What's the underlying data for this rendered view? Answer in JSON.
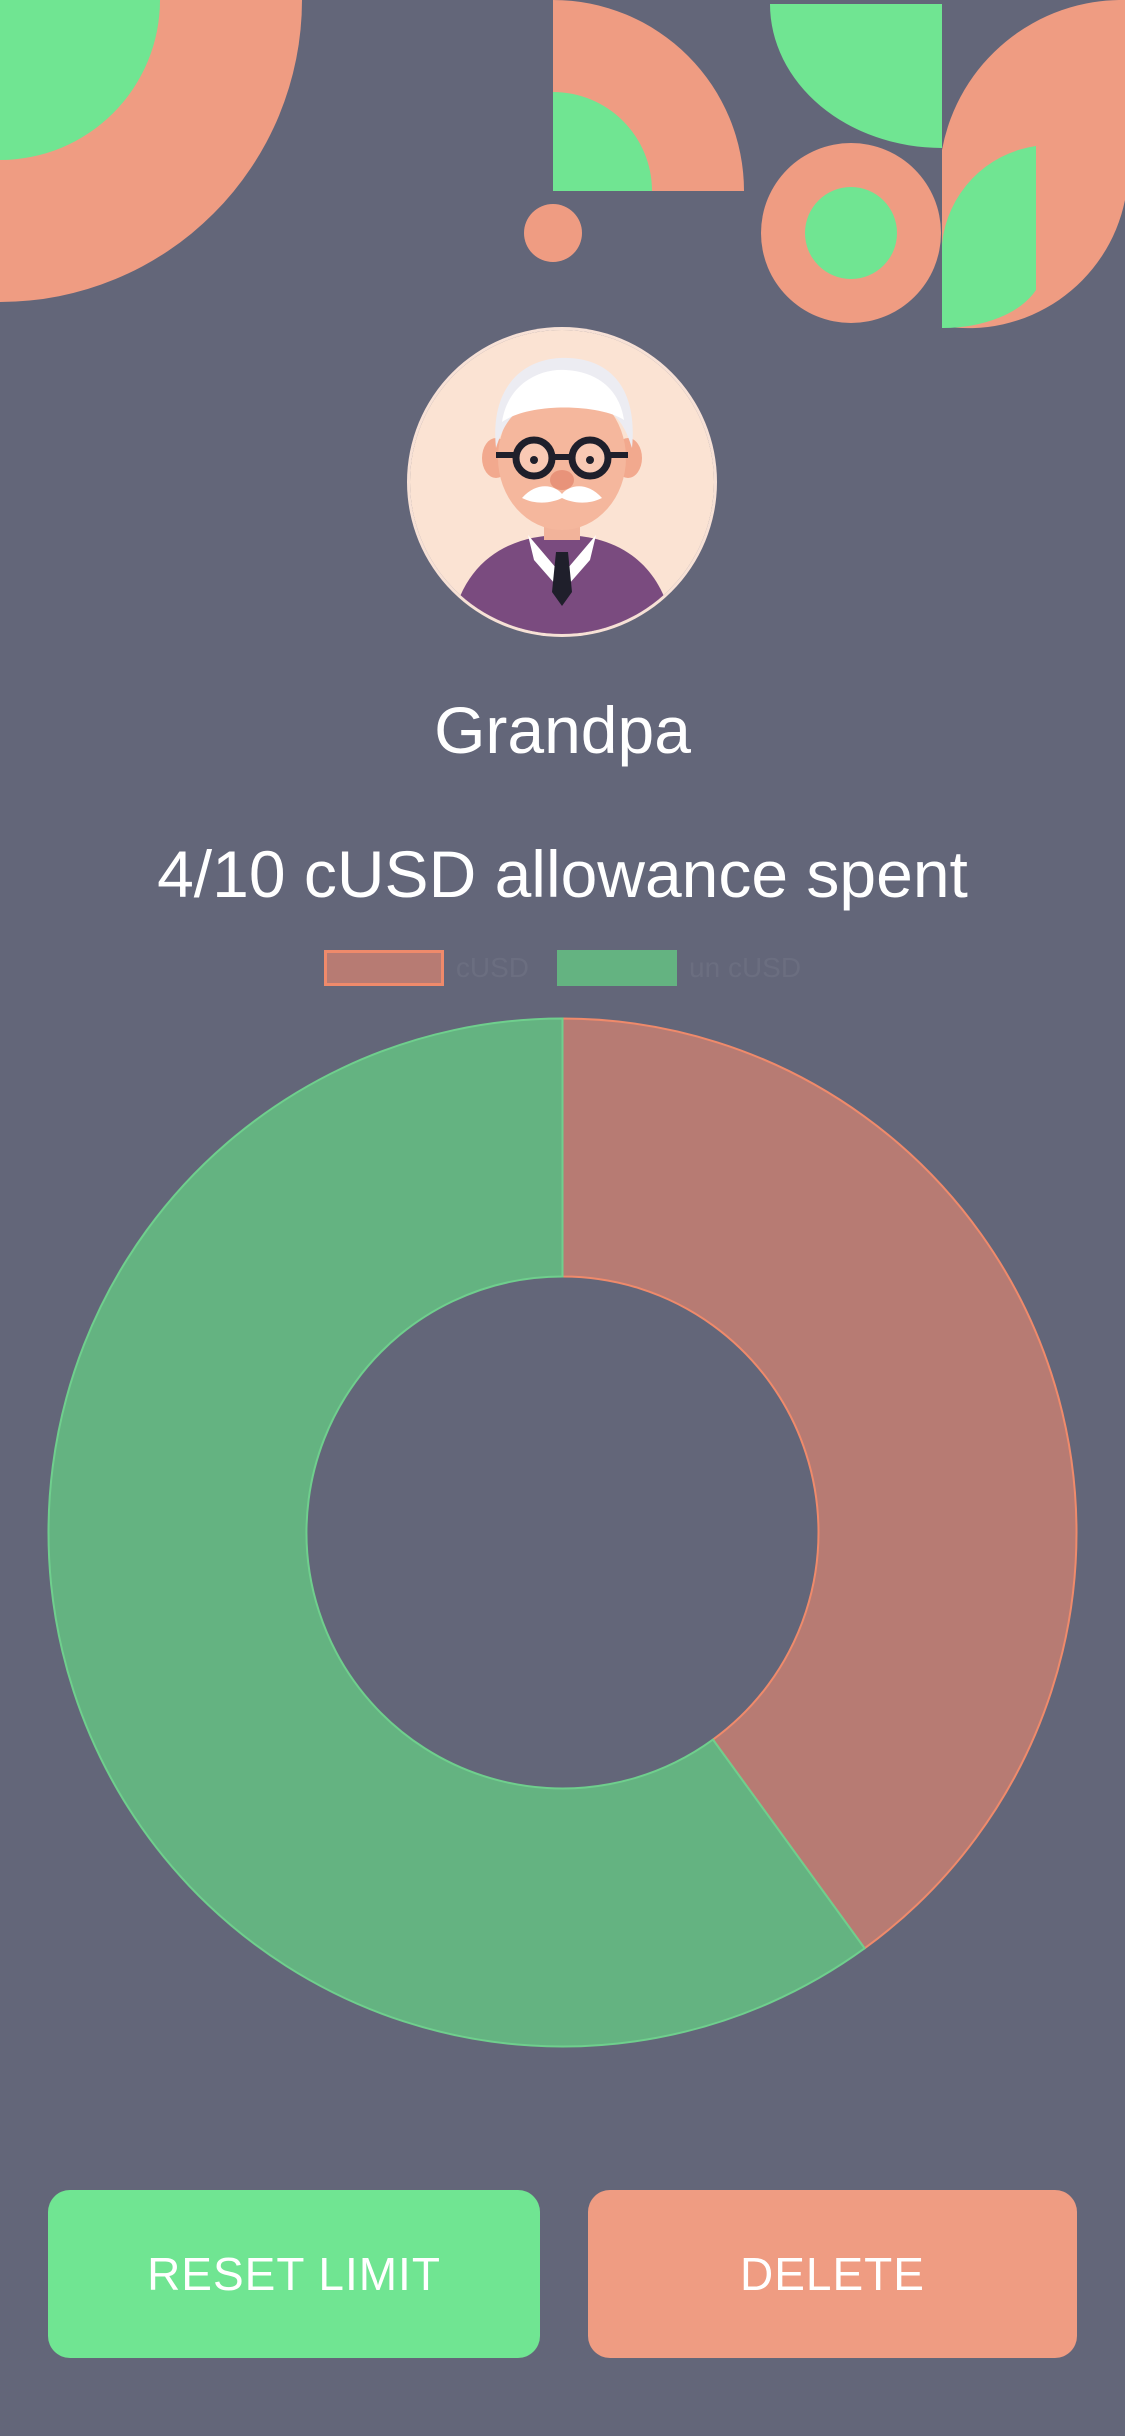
{
  "profile": {
    "name": "Grandpa"
  },
  "summary": {
    "headline": "4/10 cUSD allowance spent"
  },
  "colors": {
    "background": "#636679",
    "accent_green": "#70e592",
    "accent_orange": "#ef9c82",
    "spent_slice": "#b77b73",
    "unspent_slice": "#64b381"
  },
  "chart_data": {
    "type": "pie",
    "variant": "doughnut",
    "categories": [
      "cUSD",
      "un cUSD"
    ],
    "values": [
      4,
      6
    ],
    "legend_position": "top"
  },
  "buttons": {
    "reset_label": "RESET LIMIT",
    "delete_label": "DELETE"
  }
}
